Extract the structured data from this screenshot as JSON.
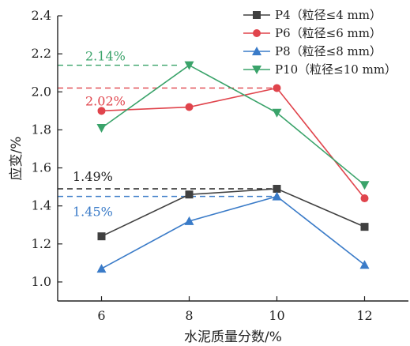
{
  "chart_data": {
    "type": "line",
    "title": "",
    "xlabel": "水泥质量分数/%",
    "ylabel": "应变/%",
    "x": [
      6,
      8,
      10,
      12
    ],
    "x_ticks": [
      "6",
      "8",
      "10",
      "12"
    ],
    "xlim": [
      5,
      13
    ],
    "ylim": [
      0.9,
      2.4
    ],
    "y_ticks": [
      "1.0",
      "1.2",
      "1.4",
      "1.6",
      "1.8",
      "2.0",
      "2.2",
      "2.4"
    ],
    "legend_position": "top-right",
    "grid": false,
    "series": [
      {
        "name": "P4（粒径≤4 mm）",
        "values": [
          1.24,
          1.46,
          1.49,
          1.29
        ],
        "color": "#404040",
        "marker": "square"
      },
      {
        "name": "P6（粒径≤6 mm）",
        "values": [
          1.9,
          1.92,
          2.02,
          1.44
        ],
        "color": "#e0444c",
        "marker": "circle"
      },
      {
        "name": "P8（粒径≤8 mm）",
        "values": [
          1.07,
          1.32,
          1.45,
          1.09
        ],
        "color": "#3a7bc8",
        "marker": "triangle-up"
      },
      {
        "name": "P10（粒径≤10 mm）",
        "values": [
          1.81,
          2.14,
          1.89,
          1.51
        ],
        "color": "#3aa36a",
        "marker": "triangle-down"
      }
    ],
    "annotations": [
      {
        "text": "2.14%",
        "value": 2.14,
        "color": "#3aa36a"
      },
      {
        "text": "2.02%",
        "value": 2.02,
        "color": "#e0444c"
      },
      {
        "text": "1.49%",
        "value": 1.49,
        "color": "#222222"
      },
      {
        "text": "1.45%",
        "value": 1.45,
        "color": "#3a7bc8"
      }
    ]
  }
}
